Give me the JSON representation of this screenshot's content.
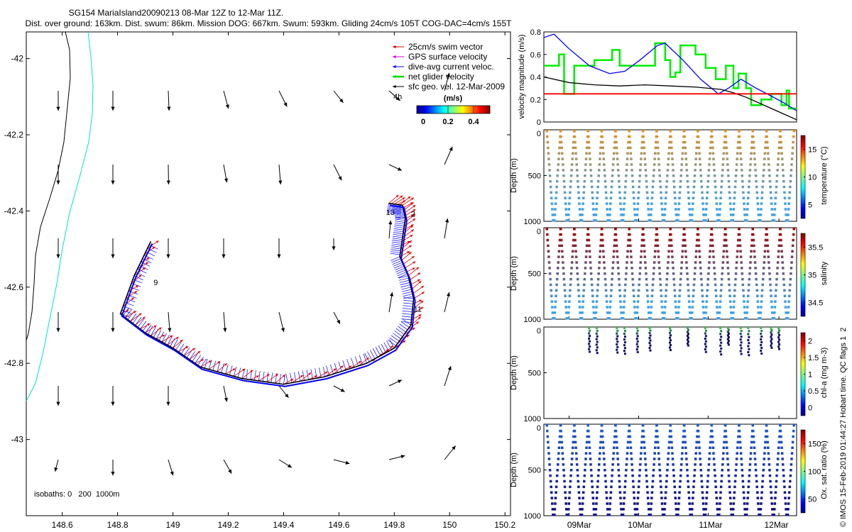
{
  "title_line1": "SG154 MariaIsland20090213 08-Mar 12Z to 12-Mar 11Z.",
  "title_line2": "Dist. over ground: 163km. Dist. swum: 86km. Mission DOG: 667km. Swum: 593km. Gliding 24cm/s 105T COG-DAC=4cm/s 155T",
  "legend": {
    "items": [
      {
        "label": "25cm/s swim vector",
        "color": "#e00000"
      },
      {
        "label": "GPS surface velocity",
        "color": "#d000d0"
      },
      {
        "label": "dive-avg current veloc.",
        "color": "#0000ff"
      },
      {
        "label": "net glider velocity",
        "color": "#00dd00"
      },
      {
        "label": "sfc geo. vel. 12-Mar-2009",
        "color": "#000000"
      }
    ],
    "note": "4h",
    "colorbar_unit": "(m/s)",
    "colorbar_ticks": [
      "0",
      "0.2",
      "0.4"
    ]
  },
  "isobaths_label": "isobaths: 0   200  1000m",
  "side_label": "© IMOS 15-Feb-2019 01:44:27 Hobart time. QC flags 1  2",
  "chart_data": [
    {
      "type": "map",
      "name": "track-map",
      "xlim": [
        148.47,
        150.22
      ],
      "ylim": [
        -43.2,
        -41.93
      ],
      "xticks": [
        "148.6",
        "148.8",
        "149",
        "149.2",
        "149.4",
        "149.6",
        "149.8",
        "150",
        "150.2"
      ],
      "xtick_values": [
        148.6,
        148.8,
        149.0,
        149.2,
        149.4,
        149.6,
        149.8,
        150.0,
        150.2
      ],
      "yticks": [
        "-42",
        "-42.2",
        "-42.4",
        "-42.6",
        "-42.8",
        "-43"
      ],
      "ytick_values": [
        -42.0,
        -42.2,
        -42.4,
        -42.6,
        -42.8,
        -43.0
      ],
      "track_labels": [
        {
          "text": "13",
          "lon": 149.77,
          "lat": -42.41
        },
        {
          "text": "2",
          "lon": 149.86,
          "lat": -42.415
        },
        {
          "text": "11",
          "lon": 149.87,
          "lat": -42.665
        },
        {
          "text": "9",
          "lon": 148.93,
          "lat": -42.595
        }
      ],
      "track": [
        [
          149.78,
          -42.38
        ],
        [
          149.83,
          -42.385
        ],
        [
          149.84,
          -42.42
        ],
        [
          149.83,
          -42.47
        ],
        [
          149.82,
          -42.52
        ],
        [
          149.85,
          -42.57
        ],
        [
          149.87,
          -42.63
        ],
        [
          149.86,
          -42.7
        ],
        [
          149.8,
          -42.76
        ],
        [
          149.7,
          -42.8
        ],
        [
          149.55,
          -42.835
        ],
        [
          149.4,
          -42.855
        ],
        [
          149.25,
          -42.84
        ],
        [
          149.1,
          -42.81
        ],
        [
          149.0,
          -42.76
        ],
        [
          148.9,
          -42.72
        ],
        [
          148.81,
          -42.67
        ],
        [
          148.86,
          -42.57
        ],
        [
          148.92,
          -42.48
        ]
      ],
      "geo_vectors_uv": [
        [
          0,
          -1
        ],
        [
          0,
          -1
        ],
        [
          0.05,
          -1
        ],
        [
          0.3,
          -0.9
        ],
        [
          0.5,
          -0.8
        ],
        [
          0.6,
          -0.6
        ],
        [
          0.7,
          -0.5
        ],
        [
          0.3,
          0.9
        ],
        [
          0,
          -1
        ],
        [
          0,
          -1
        ],
        [
          0.02,
          -1
        ],
        [
          0.2,
          -0.9
        ],
        [
          0.1,
          -1
        ],
        [
          0.5,
          -0.8
        ],
        [
          0.8,
          -0.3
        ],
        [
          0.5,
          0.9
        ],
        [
          0,
          -1
        ],
        [
          0,
          -1
        ],
        [
          0,
          -1
        ],
        [
          0,
          -1
        ],
        [
          0,
          -1
        ],
        [
          0,
          -0.6
        ],
        [
          0.1,
          0.9
        ],
        [
          0.2,
          1
        ],
        [
          0,
          -1
        ],
        [
          0,
          -1
        ],
        [
          0.1,
          -1
        ],
        [
          0.1,
          -1
        ],
        [
          0.3,
          -1
        ],
        [
          0.4,
          -0.6
        ],
        [
          0.2,
          1
        ],
        [
          0.3,
          1
        ],
        [
          0,
          -1
        ],
        [
          0,
          -1
        ],
        [
          0,
          -1
        ],
        [
          0.2,
          -0.8
        ],
        [
          0.6,
          -0.6
        ],
        [
          0.7,
          -0.3
        ],
        [
          0.8,
          0.3
        ],
        [
          0.4,
          1
        ],
        [
          -0.2,
          -0.6
        ],
        [
          0,
          -0.8
        ],
        [
          0.3,
          -0.8
        ],
        [
          0.5,
          -0.7
        ],
        [
          0.8,
          -0.4
        ],
        [
          1,
          -0.2
        ],
        [
          1,
          0.2
        ],
        [
          0.7,
          0.7
        ]
      ]
    },
    {
      "type": "line",
      "name": "velocity-magnitude",
      "ylabel": "velocity magnitude (m/s)",
      "ylim": [
        0,
        0.8
      ],
      "yticks": [
        "0",
        "0.2",
        "0.4",
        "0.6",
        "0.8"
      ],
      "series": [
        {
          "name": "dive-avg current",
          "color": "#0000ff",
          "points": [
            [
              0,
              0.75
            ],
            [
              0.04,
              0.78
            ],
            [
              0.1,
              0.65
            ],
            [
              0.18,
              0.5
            ],
            [
              0.26,
              0.43
            ],
            [
              0.32,
              0.45
            ],
            [
              0.38,
              0.55
            ],
            [
              0.45,
              0.68
            ],
            [
              0.48,
              0.7
            ],
            [
              0.55,
              0.55
            ],
            [
              0.62,
              0.38
            ],
            [
              0.69,
              0.25
            ],
            [
              0.73,
              0.3
            ],
            [
              0.78,
              0.38
            ],
            [
              0.84,
              0.3
            ],
            [
              0.9,
              0.23
            ],
            [
              0.95,
              0.17
            ],
            [
              1,
              0.1
            ]
          ]
        },
        {
          "name": "sfc geo speed",
          "color": "#000000",
          "points": [
            [
              0,
              0.4
            ],
            [
              0.1,
              0.35
            ],
            [
              0.2,
              0.33
            ],
            [
              0.3,
              0.32
            ],
            [
              0.4,
              0.33
            ],
            [
              0.5,
              0.32
            ],
            [
              0.6,
              0.31
            ],
            [
              0.7,
              0.29
            ],
            [
              0.75,
              0.26
            ],
            [
              0.8,
              0.22
            ],
            [
              0.88,
              0.14
            ],
            [
              0.95,
              0.07
            ],
            [
              1,
              0.02
            ]
          ]
        },
        {
          "name": "reference 0.25 m/s",
          "color": "#ff0000",
          "points": [
            [
              0,
              0.25
            ],
            [
              1,
              0.25
            ]
          ]
        }
      ]
    },
    {
      "type": "scatter",
      "name": "temperature",
      "clabel": "temperature (°C)",
      "cticks": [
        "5",
        "10",
        "15"
      ],
      "yticks": [
        "0",
        "500",
        "1000"
      ],
      "ylabel": "Depth (m)",
      "profile_depth": 1000,
      "surface_color": "#e09020",
      "deep_color": "#3aa0e8"
    },
    {
      "type": "scatter",
      "name": "salinity",
      "clabel": "salinity",
      "cticks": [
        "34.5",
        "35",
        "35.5"
      ],
      "yticks": [
        "0",
        "500",
        "1000"
      ],
      "ylabel": "Depth (m)",
      "profile_depth": 1000,
      "surface_color": "#a00000",
      "deep_color": "#3aa0e8"
    },
    {
      "type": "scatter",
      "name": "chlorophyll",
      "clabel": "chl-a (mg m-3)",
      "cticks": [
        "0",
        "0.5",
        "1",
        "1.5",
        "2"
      ],
      "yticks": [
        "0",
        "500",
        "1000"
      ],
      "ylabel": "Depth (m)",
      "profile_depth": 300,
      "surface_color": "#30c040",
      "deep_color": "#10106a"
    },
    {
      "type": "scatter",
      "name": "oxygen",
      "clabel": "Ox. sat. ratio (%)",
      "cticks": [
        "50",
        "100",
        "150"
      ],
      "yticks": [
        "0",
        "500",
        "1000"
      ],
      "ylabel": "Depth (m)",
      "profile_depth": 1000,
      "surface_color": "#1a60d0",
      "deep_color": "#10108a",
      "xticks": [
        "09Mar",
        "10Mar",
        "11Mar",
        "12Mar"
      ]
    }
  ]
}
